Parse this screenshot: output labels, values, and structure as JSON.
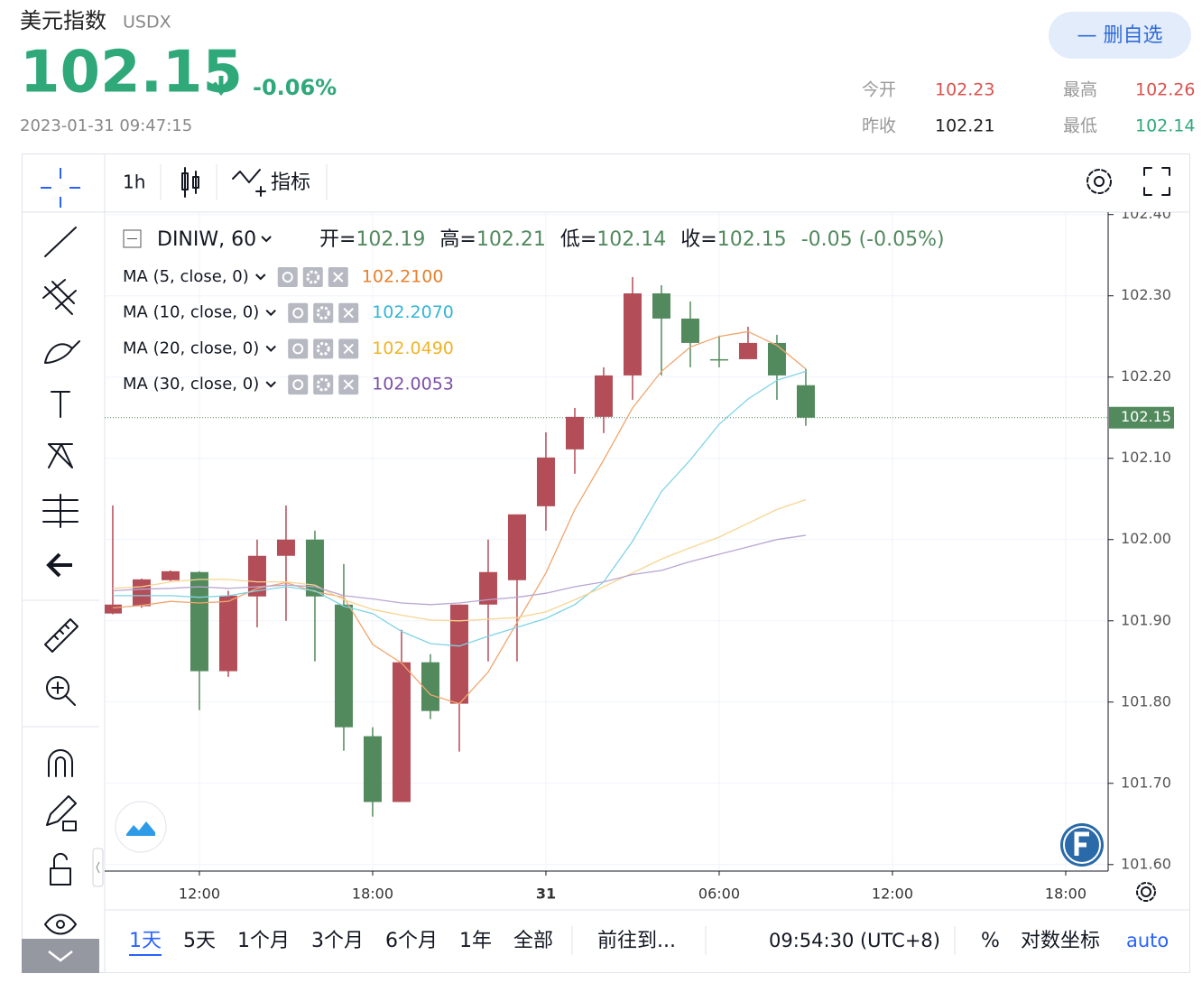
{
  "header": {
    "title": "美元指数",
    "code": "USDX",
    "price": "102.15",
    "change": "-0.06%",
    "time": "2023-01-31 09:47:15",
    "button": "— 删自选",
    "stats": [
      {
        "label": "今开",
        "value": "102.23"
      },
      {
        "label": "最高",
        "value": "102.26"
      },
      {
        "label": "昨收",
        "value": "102.21"
      },
      {
        "label": "最低",
        "value": "102.14"
      }
    ]
  },
  "toolbar": {
    "interval": "1h",
    "indicators": "指标"
  },
  "chart_data": {
    "type": "candlestick",
    "symbol": "DINIW, 60",
    "ohlc": [
      {
        "label": "开=",
        "value": "102.19"
      },
      {
        "label": "高=",
        "value": "102.21"
      },
      {
        "label": "低=",
        "value": "102.14"
      },
      {
        "label": "收=",
        "value": "102.15"
      }
    ],
    "change": "-0.05 (-0.05%)",
    "x": [
      9,
      10,
      11,
      12,
      13,
      14,
      15,
      16,
      17,
      18,
      19,
      20,
      21,
      22,
      23,
      24,
      25,
      26,
      27,
      28,
      29,
      30,
      31,
      32,
      33
    ],
    "open": [
      101.909,
      101.918,
      101.95,
      101.96,
      101.838,
      101.93,
      101.98,
      102.0,
      101.92,
      101.758,
      101.677,
      101.849,
      101.798,
      101.92,
      101.95,
      102.041,
      102.111,
      102.151,
      102.202,
      102.303,
      102.272,
      102.222,
      102.222,
      102.242,
      102.19
    ],
    "high": [
      102.042,
      101.952,
      101.962,
      101.961,
      101.937,
      102.0,
      102.042,
      102.011,
      101.97,
      101.769,
      101.889,
      101.859,
      101.92,
      102.0,
      102.031,
      102.132,
      102.162,
      102.212,
      102.323,
      102.313,
      102.293,
      102.251,
      102.262,
      102.252,
      102.21
    ],
    "low": [
      101.908,
      101.916,
      101.949,
      101.79,
      101.831,
      101.892,
      101.9,
      101.85,
      101.74,
      101.659,
      101.677,
      101.779,
      101.739,
      101.85,
      101.85,
      102.011,
      102.081,
      102.131,
      102.172,
      102.202,
      102.212,
      102.212,
      102.222,
      102.172,
      102.14
    ],
    "close": [
      101.92,
      101.951,
      101.961,
      101.838,
      101.931,
      101.98,
      102.0,
      101.93,
      101.769,
      101.677,
      101.849,
      101.789,
      101.92,
      101.96,
      102.031,
      102.101,
      102.151,
      102.202,
      102.303,
      102.272,
      102.242,
      102.221,
      102.242,
      102.202,
      102.15
    ],
    "up_color": "#b34d57",
    "down_color": "#528a5e",
    "series": [
      {
        "name": "MA (5, close, 0)",
        "color": "#f0a66e",
        "legend_value": {
          "value": 102.21,
          "label": "102.2100"
        },
        "values": [
          101.916,
          101.919,
          101.924,
          101.922,
          101.924,
          101.94,
          101.947,
          101.936,
          101.929,
          101.871,
          101.848,
          101.809,
          101.798,
          101.837,
          101.898,
          101.959,
          102.037,
          102.098,
          102.162,
          102.207,
          102.237,
          102.25,
          102.256,
          102.239,
          102.21
        ]
      },
      {
        "name": "MA (10, close, 0)",
        "color": "#7fd3e6",
        "legend_value": {
          "value": 102.207,
          "label": "102.2070"
        },
        "values": [
          101.931,
          101.931,
          101.931,
          101.929,
          101.931,
          101.937,
          101.942,
          101.937,
          101.918,
          101.909,
          101.887,
          101.872,
          101.869,
          101.881,
          101.892,
          101.903,
          101.92,
          101.948,
          101.998,
          102.059,
          102.098,
          102.142,
          102.173,
          102.196,
          102.207
        ]
      },
      {
        "name": "MA (20, close, 0)",
        "color": "#f6d592",
        "legend_value": {
          "value": 102.049,
          "label": "102.0490"
        },
        "values": [
          101.94,
          101.942,
          101.948,
          101.951,
          101.951,
          101.948,
          101.948,
          101.944,
          101.926,
          101.914,
          101.907,
          101.901,
          101.9,
          101.902,
          101.904,
          101.911,
          101.926,
          101.942,
          101.959,
          101.976,
          101.99,
          102.003,
          102.02,
          102.037,
          102.049
        ]
      },
      {
        "name": "MA (30, close, 0)",
        "color": "#b9a6d3",
        "legend_value": {
          "value": 102.0053,
          "label": "102.0053"
        },
        "values": [
          101.937,
          101.939,
          101.94,
          101.942,
          101.94,
          101.942,
          101.944,
          101.942,
          101.931,
          101.927,
          101.922,
          101.92,
          101.922,
          101.926,
          101.929,
          101.934,
          101.942,
          101.948,
          101.957,
          101.962,
          101.973,
          101.982,
          101.991,
          102.0,
          102.0053
        ]
      }
    ],
    "legend_colors": [
      "#e8802c",
      "#35b5d6",
      "#f0b429",
      "#7b4fa6"
    ],
    "last_price": 102.15,
    "xlim": [
      8.72,
      43.47
    ],
    "xticks": [
      {
        "value": 12,
        "label": "12:00"
      },
      {
        "value": 18,
        "label": "18:00"
      },
      {
        "value": 24,
        "label": "31"
      },
      {
        "value": 30,
        "label": "06:00"
      },
      {
        "value": 36,
        "label": "12:00"
      },
      {
        "value": 42,
        "label": "18:00"
      }
    ],
    "ylim": [
      101.592,
      102.403
    ],
    "yticks": [
      {
        "value": 101.6,
        "label": "101.60"
      },
      {
        "value": 101.7,
        "label": "101.70"
      },
      {
        "value": 101.8,
        "label": "101.80"
      },
      {
        "value": 101.9,
        "label": "101.90"
      },
      {
        "value": 102.0,
        "label": "102.00"
      },
      {
        "value": 102.1,
        "label": "102.10"
      },
      {
        "value": 102.2,
        "label": "102.20"
      },
      {
        "value": 102.3,
        "label": "102.30"
      },
      {
        "value": 102.4,
        "label": "102.40"
      }
    ],
    "grid": true
  },
  "bottom_bar": {
    "ranges": [
      "1天",
      "5天",
      "1个月",
      "3个月",
      "6个月",
      "1年",
      "全部"
    ],
    "goto": "前往到...",
    "clock": "09:54:30 (UTC+8)",
    "percent": "%",
    "log": "对数坐标",
    "auto": "auto"
  }
}
